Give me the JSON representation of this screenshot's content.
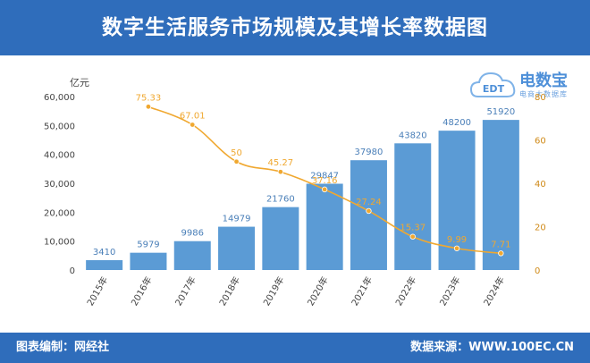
{
  "header": {
    "title": "数字生活服务市场规模及其增长率数据图"
  },
  "footer": {
    "left": "图表编制：网经社",
    "right": "数据来源：WWW.100EC.CN"
  },
  "logo": {
    "main": "电数宝",
    "sub": "电商大数据库",
    "mark": "EDT"
  },
  "chart_data": {
    "type": "bar",
    "categories": [
      "2015年",
      "2016年",
      "2017年",
      "2018年",
      "2019年",
      "2020年",
      "2021年",
      "2022年",
      "2023年",
      "2024年"
    ],
    "ylabel": "亿元",
    "ylim": [
      0,
      60000
    ],
    "yticks": [
      "0",
      "10,000",
      "20,000",
      "30,000",
      "40,000",
      "50,000",
      "60,000"
    ],
    "y2lim": [
      0,
      80
    ],
    "y2ticks": [
      "0",
      "20",
      "40",
      "60",
      "80"
    ],
    "series": [
      {
        "type": "bar",
        "axis": "left",
        "values": [
          3410,
          5979,
          9986,
          14979,
          21760,
          29847,
          37980,
          43820,
          48200,
          51920
        ],
        "labels": [
          "3410",
          "5979",
          "9986",
          "14979",
          "21760",
          "29847",
          "37980",
          "43820",
          "48200",
          "51920"
        ]
      },
      {
        "type": "line",
        "axis": "right",
        "values": [
          null,
          75.33,
          67.01,
          50,
          45.27,
          37.16,
          27.24,
          15.37,
          9.99,
          7.71
        ],
        "labels": [
          "",
          "75.33",
          "67.01",
          "50",
          "45.27",
          "37.16",
          "27.24",
          "15.37",
          "9.99",
          "7.71"
        ]
      }
    ],
    "colors": {
      "bar": "#5b9bd5",
      "line": "#f0a830",
      "bar_label": "#4a7fb8"
    },
    "grid": false,
    "legend": "none"
  }
}
